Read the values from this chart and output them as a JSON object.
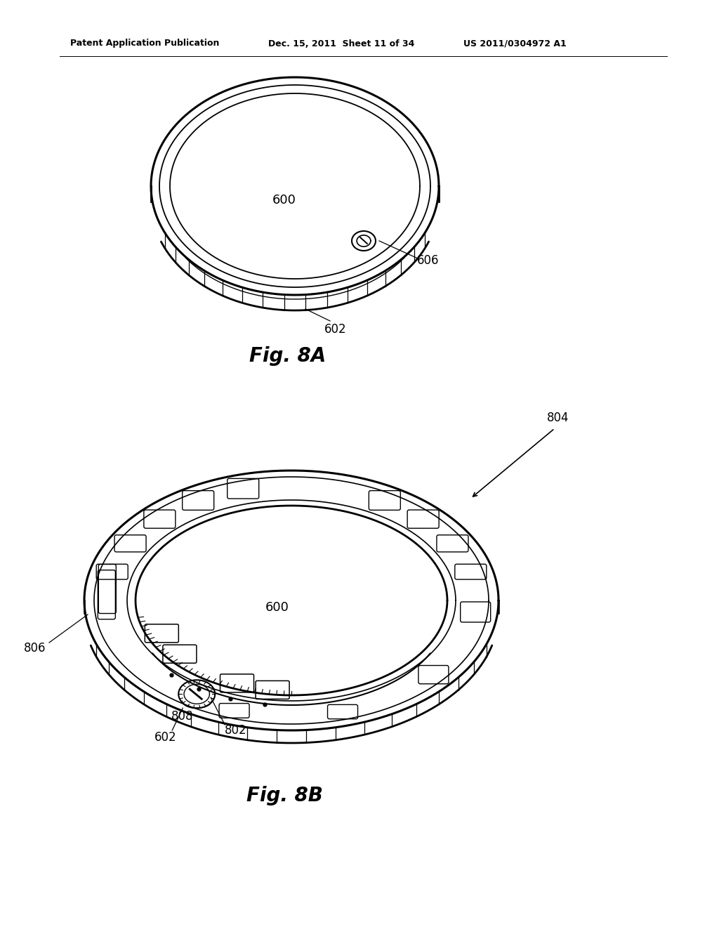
{
  "bg_color": "#ffffff",
  "line_color": "#000000",
  "header_left": "Patent Application Publication",
  "header_mid": "Dec. 15, 2011  Sheet 11 of 34",
  "header_right": "US 2011/0304972 A1",
  "fig8a_label": "Fig. 8A",
  "fig8b_label": "Fig. 8B",
  "label_600_8a": "600",
  "label_602_8a": "602",
  "label_606_8a": "606",
  "label_600_8b": "600",
  "label_602_8b": "602",
  "label_802_8b": "802",
  "label_804_8b": "804",
  "label_806_8b": "806",
  "label_808_8b": "808"
}
